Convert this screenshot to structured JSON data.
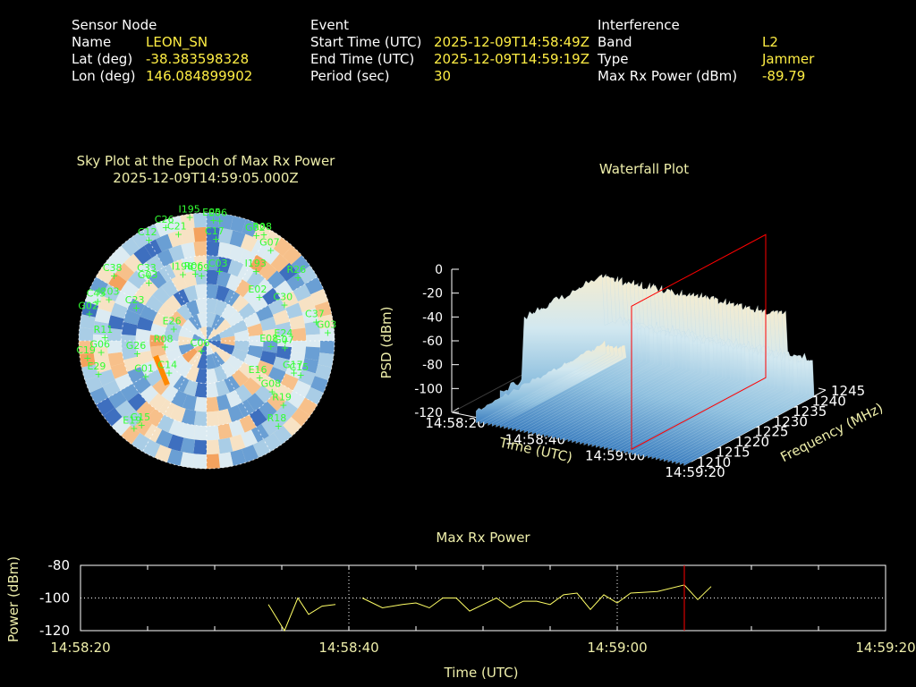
{
  "header": {
    "sensor": {
      "section": "Sensor Node",
      "name_label": "Name",
      "name": "LEON_SN",
      "lat_label": "Lat (deg)",
      "lat": "-38.383598328",
      "lon_label": "Lon (deg)",
      "lon": "146.084899902"
    },
    "event": {
      "section": "Event",
      "start_label": "Start Time (UTC)",
      "start": "2025-12-09T14:58:49Z",
      "end_label": "End Time (UTC)",
      "end": "2025-12-09T14:59:19Z",
      "period_label": "Period (sec)",
      "period": "30"
    },
    "interference": {
      "section": "Interference",
      "band_label": "Band",
      "band": "L2",
      "type_label": "Type",
      "type": "Jammer",
      "power_label": "Max Rx Power (dBm)",
      "power": "-89.79"
    }
  },
  "colors": {
    "label": "#ffffff",
    "value": "#ffee44",
    "title": "#eeeeaa",
    "sat": "#33ff33",
    "marker": "#ff0000",
    "trace": "#ffff66",
    "arrow": "#ff8800"
  },
  "chart_data": [
    {
      "type": "polar",
      "title": "Sky Plot at the Epoch of Max Rx Power",
      "subtitle": "2025-12-09T14:59:05.000Z",
      "satellites": [
        {
          "id": "I195",
          "az": 352,
          "el": 2
        },
        {
          "id": "E05",
          "az": 3,
          "el": 5
        },
        {
          "id": "E06",
          "az": 6,
          "el": 5
        },
        {
          "id": "C12",
          "az": 330,
          "el": 8
        },
        {
          "id": "C26",
          "az": 340,
          "el": 5
        },
        {
          "id": "C21",
          "az": 345,
          "el": 12
        },
        {
          "id": "C17",
          "az": 5,
          "el": 18
        },
        {
          "id": "G02",
          "az": 25,
          "el": 8
        },
        {
          "id": "R08",
          "az": 28,
          "el": 5
        },
        {
          "id": "G07",
          "az": 35,
          "el": 12
        },
        {
          "id": "C38",
          "az": 305,
          "el": 10
        },
        {
          "id": "C33",
          "az": 318,
          "el": 28
        },
        {
          "id": "G03",
          "az": 315,
          "el": 32
        },
        {
          "id": "C45",
          "az": 290,
          "el": 8
        },
        {
          "id": "I203",
          "az": 293,
          "el": 15
        },
        {
          "id": "G02",
          "az": 283,
          "el": 5
        },
        {
          "id": "C23",
          "az": 295,
          "el": 35
        },
        {
          "id": "I198",
          "az": 340,
          "el": 40
        },
        {
          "id": "R06",
          "az": 350,
          "el": 42
        },
        {
          "id": "C09",
          "az": 355,
          "el": 44
        },
        {
          "id": "C03",
          "az": 10,
          "el": 40
        },
        {
          "id": "I193",
          "az": 35,
          "el": 30
        },
        {
          "id": "R26",
          "az": 55,
          "el": 12
        },
        {
          "id": "E02",
          "az": 50,
          "el": 42
        },
        {
          "id": "C30",
          "az": 65,
          "el": 30
        },
        {
          "id": "R11",
          "az": 272,
          "el": 18
        },
        {
          "id": "G06",
          "az": 264,
          "el": 15
        },
        {
          "id": "C19",
          "az": 262,
          "el": 5
        },
        {
          "id": "G26",
          "az": 260,
          "el": 40
        },
        {
          "id": "R08",
          "az": 262,
          "el": 60
        },
        {
          "id": "E26",
          "az": 290,
          "el": 65
        },
        {
          "id": "C37",
          "az": 80,
          "el": 12
        },
        {
          "id": "G03",
          "az": 86,
          "el": 5
        },
        {
          "id": "E24",
          "az": 90,
          "el": 35
        },
        {
          "id": "G07",
          "az": 95,
          "el": 35
        },
        {
          "id": "E08",
          "az": 95,
          "el": 45
        },
        {
          "id": "E29",
          "az": 253,
          "el": 10
        },
        {
          "id": "C01",
          "az": 240,
          "el": 40
        },
        {
          "id": "C06",
          "az": 210,
          "el": 82
        },
        {
          "id": "C15",
          "az": 110,
          "el": 20
        },
        {
          "id": "G17",
          "az": 110,
          "el": 25
        },
        {
          "id": "E16",
          "az": 125,
          "el": 45
        },
        {
          "id": "G08",
          "az": 128,
          "el": 32
        },
        {
          "id": "C14",
          "az": 230,
          "el": 55
        },
        {
          "id": "R19",
          "az": 130,
          "el": 20
        },
        {
          "id": "R18",
          "az": 140,
          "el": 12
        },
        {
          "id": "G15",
          "az": 218,
          "el": 15
        },
        {
          "id": "E19",
          "az": 220,
          "el": 10
        }
      ]
    },
    {
      "type": "surface",
      "title": "Waterfall Plot",
      "zlabel": "PSD (dBm)",
      "zlim": [
        -120,
        0
      ],
      "zticks": [
        0,
        -20,
        -40,
        -60,
        -80,
        -100,
        -120
      ],
      "xlabel": "Time (UTC)",
      "xticks": [
        "14:58:20",
        "14:58:40",
        "14:59:00",
        "14:59:20"
      ],
      "ylabel": "Frequency (MHz)",
      "ylim": [
        1210,
        1245
      ],
      "yticks": [
        1210,
        1215,
        1220,
        1225,
        1230,
        1235,
        1240,
        1245
      ],
      "marker_time": "14:59:05"
    },
    {
      "type": "line",
      "title": "Max Rx Power",
      "xlabel": "Time (UTC)",
      "ylabel": "Power (dBm)",
      "xticks": [
        "14:58:20",
        "14:58:40",
        "14:59:00",
        "14:59:20"
      ],
      "xlim": [
        0,
        60
      ],
      "ylim": [
        -120,
        -80
      ],
      "yticks": [
        -80,
        -100,
        -120
      ],
      "marker_x": 45,
      "segments": [
        [
          [
            14,
            -104
          ],
          [
            15.2,
            -120
          ],
          [
            16.2,
            -100
          ],
          [
            17,
            -110
          ],
          [
            18,
            -105
          ],
          [
            19,
            -104
          ]
        ],
        [
          [
            21,
            -100
          ],
          [
            22.5,
            -106
          ],
          [
            24,
            -104
          ],
          [
            25,
            -103
          ],
          [
            26,
            -106
          ],
          [
            27,
            -100
          ],
          [
            28,
            -100
          ],
          [
            29,
            -108
          ],
          [
            30,
            -104
          ],
          [
            31,
            -100
          ],
          [
            32,
            -106
          ],
          [
            33,
            -102
          ],
          [
            34,
            -102
          ],
          [
            35,
            -104
          ],
          [
            36,
            -98
          ],
          [
            37,
            -97
          ],
          [
            38,
            -107
          ],
          [
            39,
            -98
          ],
          [
            40,
            -103
          ],
          [
            41,
            -97
          ],
          [
            43,
            -96
          ],
          [
            45,
            -92
          ],
          [
            46,
            -101
          ],
          [
            47,
            -93
          ]
        ]
      ]
    }
  ]
}
